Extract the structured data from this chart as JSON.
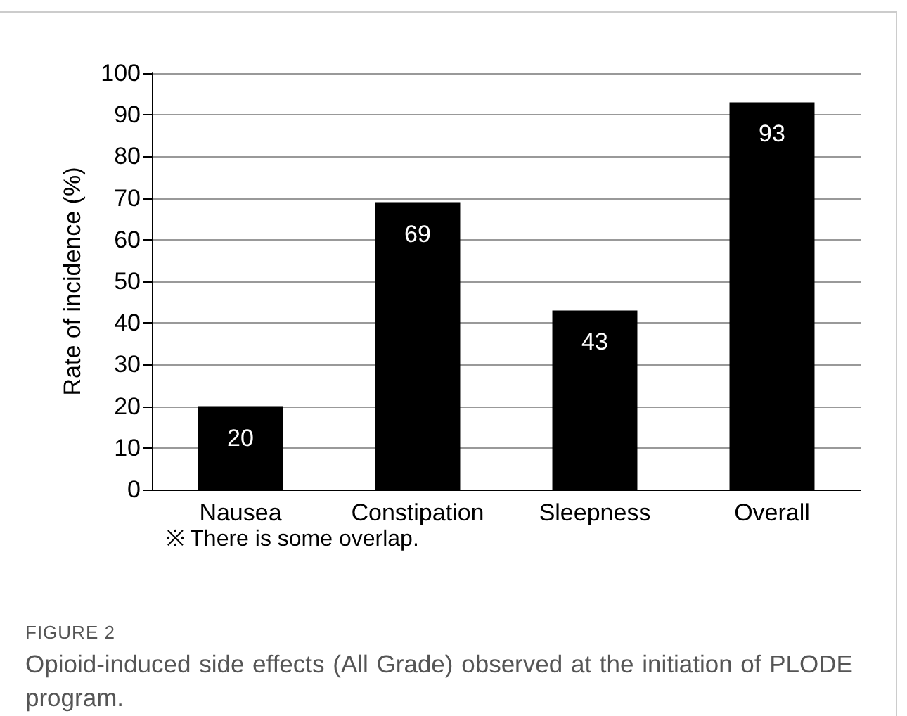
{
  "chart_data": {
    "type": "bar",
    "ylabel": "Rate of incidence (%)",
    "categories": [
      "Nausea",
      "Constipation",
      "Sleepness",
      "Overall"
    ],
    "values": [
      20,
      69,
      43,
      93
    ],
    "color": "#000000",
    "ylim": [
      0,
      100
    ],
    "yticks": [
      0,
      10,
      20,
      30,
      40,
      50,
      60,
      70,
      80,
      90,
      100
    ],
    "grid": "y",
    "data_labels": true,
    "annotations": [
      "※ There is some overlap.",
      "FIGURE 2",
      "Opioid-induced side effects (All Grade) observed at the initiation of PLODE program."
    ]
  }
}
